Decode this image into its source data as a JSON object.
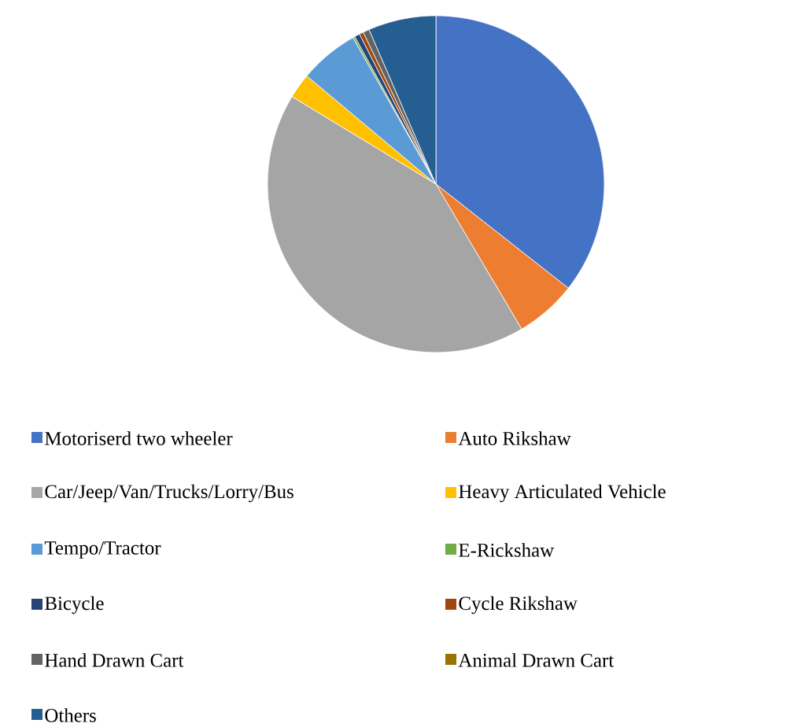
{
  "chart_data": {
    "type": "pie",
    "categories": [
      "Motoriserd two wheeler",
      "Auto Rikshaw",
      "Car/Jeep/Van/Trucks/Lorry/Bus",
      "Heavy Articulated Vehicle",
      "Tempo/Tractor",
      "E-Rickshaw",
      "Bicycle",
      "Cycle Rikshaw",
      "Hand Drawn Cart",
      "Animal Drawn Cart",
      "Others"
    ],
    "values": [
      35.6,
      5.9,
      42.2,
      2.4,
      5.7,
      0.2,
      0.5,
      0.4,
      0.6,
      null,
      6.5
    ],
    "colors": [
      "#4472c4",
      "#ed7d31",
      "#a5a5a5",
      "#ffc000",
      "#5b9bd5",
      "#70ad47",
      "#264478",
      "#9e480e",
      "#636363",
      "#997300",
      "#255e91"
    ],
    "legend": "bottom"
  }
}
